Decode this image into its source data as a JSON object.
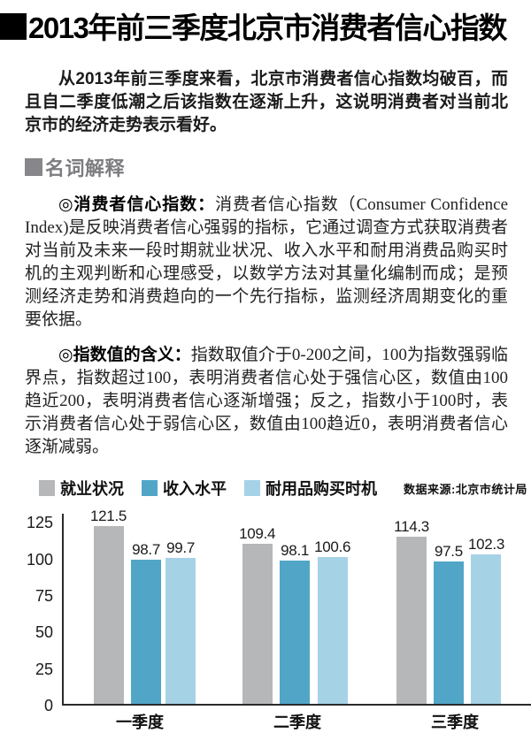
{
  "page": {
    "title": "2013年前三季度北京市消费者信心指数",
    "intro": "从2013年前三季度来看，北京市消费者信心指数均破百，而且自二季度低潮之后该指数在逐渐上升，这说明消费者对当前北京市的经济走势表示看好。",
    "section_title": "名词解释",
    "definitions": [
      {
        "term": "◎消费者信心指数：",
        "body": "消费者信心指数（Consumer Confidence Index)是反映消费者信心强弱的指标，它通过调查方式获取消费者对当前及未来一段时期就业状况、收入水平和耐用消费品购买时机的主观判断和心理感受，以数学方法对其量化编制而成；是预测经济走势和消费趋向的一个先行指标，监测经济周期变化的重要依据。"
      },
      {
        "term": "◎指数值的含义：",
        "body": "指数取值介于0-200之间，100为指数强弱临界点，指数超过100，表明消费者信心处于强信心区，数值由100趋近200，表明消费者信心逐渐增强；反之，指数小于100时，表示消费者信心处于弱信心区，数值由100趋近0，表明消费者信心逐渐减弱。"
      }
    ]
  },
  "chart_data": {
    "type": "bar",
    "categories": [
      "一季度",
      "二季度",
      "三季度"
    ],
    "series": [
      {
        "name": "就业状况",
        "color": "#b6b7b9",
        "values": [
          121.5,
          109.4,
          114.3
        ]
      },
      {
        "name": "收入水平",
        "color": "#51a6c8",
        "values": [
          98.7,
          98.1,
          97.5
        ]
      },
      {
        "name": "耐用品购买时机",
        "color": "#a6d2e6",
        "values": [
          99.7,
          100.6,
          102.3
        ]
      }
    ],
    "yticks": [
      0,
      25,
      50,
      75,
      100,
      125
    ],
    "ylim": [
      0,
      130
    ],
    "grid": false,
    "legend_position": "top",
    "value_labels": true,
    "source": "数据来源:北京市统计局",
    "axis_color": "#2b2b2b"
  }
}
